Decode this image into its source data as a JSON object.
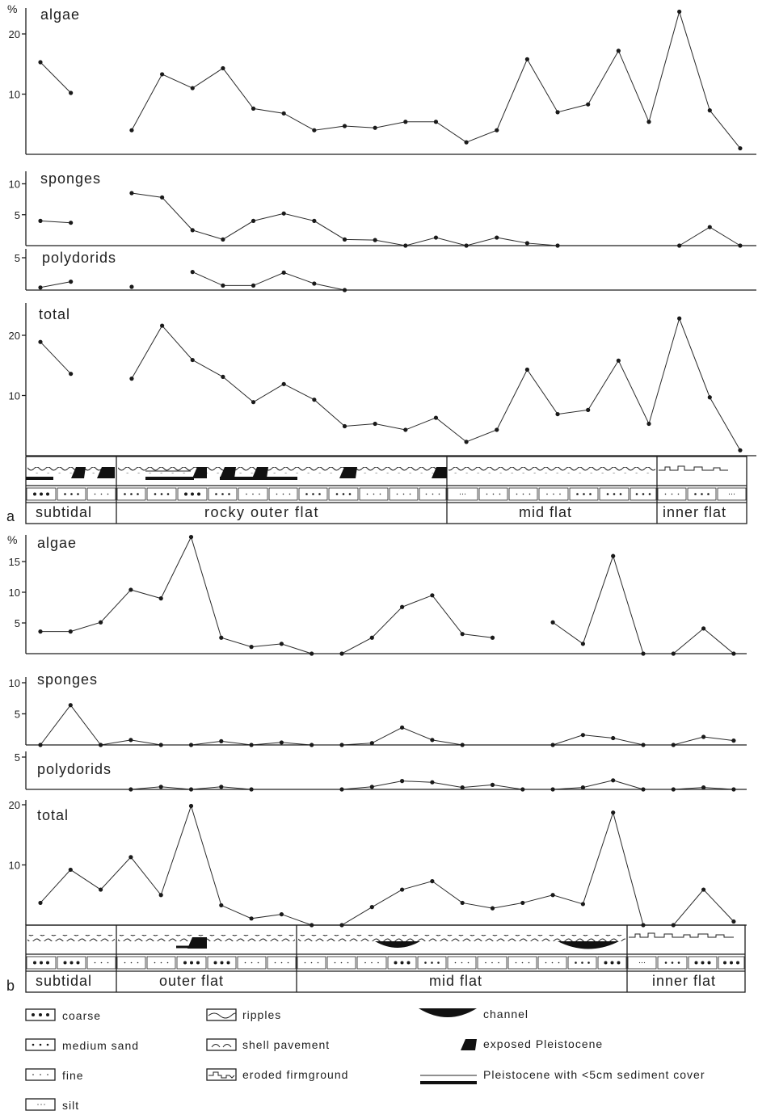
{
  "chart_data": [
    {
      "type": "line",
      "figure": "a",
      "y_unit": "%",
      "stations": 24,
      "panels": [
        {
          "title": "algae",
          "yticks": [
            10,
            20
          ],
          "values": [
            15.3,
            10.2,
            null,
            4.0,
            13.3,
            11.0,
            14.3,
            7.6,
            6.8,
            4.0,
            4.7,
            4.4,
            5.4,
            5.4,
            2.0,
            4.0,
            15.8,
            7.0,
            8.3,
            17.2,
            5.4,
            23.7,
            7.3,
            1.0
          ]
        },
        {
          "title": "sponges",
          "yticks": [
            5,
            10
          ],
          "values": [
            4.0,
            3.7,
            null,
            8.5,
            7.8,
            2.5,
            1.0,
            4.0,
            5.2,
            4.0,
            1.0,
            0.9,
            0.0,
            1.3,
            0.0,
            1.3,
            0.4,
            0.0,
            null,
            null,
            null,
            0.0,
            3.0,
            0.0
          ]
        },
        {
          "title": "polydorids",
          "yticks": [
            5
          ],
          "values": [
            0.4,
            1.3,
            null,
            0.5,
            null,
            2.8,
            0.7,
            0.7,
            2.7,
            1.0,
            0.0,
            null,
            null,
            null,
            null,
            null,
            null,
            null,
            null,
            null,
            null,
            null,
            null,
            null
          ]
        },
        {
          "title": "total",
          "yticks": [
            10,
            20
          ],
          "values": [
            18.9,
            13.6,
            null,
            12.8,
            21.6,
            15.9,
            13.1,
            8.9,
            11.9,
            9.3,
            4.9,
            5.3,
            4.3,
            6.3,
            2.3,
            4.3,
            14.3,
            6.9,
            7.6,
            15.8,
            5.3,
            22.8,
            9.7,
            0.9
          ]
        }
      ],
      "zones": [
        "subtidal",
        "rocky outer flat",
        "mid flat",
        "inner flat"
      ],
      "panel_label": "a"
    },
    {
      "type": "line",
      "figure": "b",
      "y_unit": "%",
      "stations": 24,
      "panels": [
        {
          "title": "algae",
          "yticks": [
            5,
            10,
            15
          ],
          "values": [
            3.6,
            3.6,
            5.1,
            10.4,
            9.0,
            19.0,
            2.6,
            1.1,
            1.6,
            0.0,
            0.0,
            2.6,
            7.6,
            9.5,
            3.2,
            2.6,
            null,
            5.1,
            1.6,
            15.9,
            0.0,
            0.0,
            4.1,
            0.0
          ]
        },
        {
          "title": "sponges",
          "yticks": [
            5,
            10
          ],
          "values": [
            0.0,
            6.4,
            0.0,
            0.8,
            0.0,
            0.0,
            0.6,
            0.0,
            0.4,
            0.0,
            0.0,
            0.3,
            2.8,
            0.8,
            0.0,
            null,
            null,
            0.0,
            1.6,
            1.1,
            0.0,
            0.0,
            1.3,
            0.7
          ]
        },
        {
          "title": "polydorids",
          "yticks": [
            5
          ],
          "values": [
            null,
            null,
            null,
            0.0,
            0.4,
            0.0,
            0.4,
            0.0,
            null,
            null,
            0.0,
            0.4,
            1.3,
            1.1,
            0.3,
            0.7,
            0.0,
            0.0,
            0.3,
            1.4,
            0.0,
            0.0,
            0.3,
            0.0
          ]
        },
        {
          "title": "total",
          "yticks": [
            10,
            20
          ],
          "values": [
            3.7,
            9.2,
            5.9,
            11.3,
            5.0,
            19.8,
            3.3,
            1.1,
            1.8,
            0.0,
            0.0,
            3.0,
            5.9,
            7.3,
            3.7,
            2.8,
            3.7,
            5.0,
            3.5,
            18.7,
            0.0,
            0.0,
            5.9,
            0.6
          ]
        }
      ],
      "zones": [
        "subtidal",
        "outer flat",
        "mid flat",
        "inner flat"
      ],
      "panel_label": "b"
    }
  ],
  "legend": {
    "sediment": [
      "coarse",
      "medium sand",
      "fine",
      "silt"
    ],
    "surface": [
      "ripples",
      "shell pavement",
      "eroded firmground"
    ],
    "features": [
      "channel",
      "exposed Pleistocene",
      "Pleistocene with <5cm sediment cover"
    ]
  }
}
